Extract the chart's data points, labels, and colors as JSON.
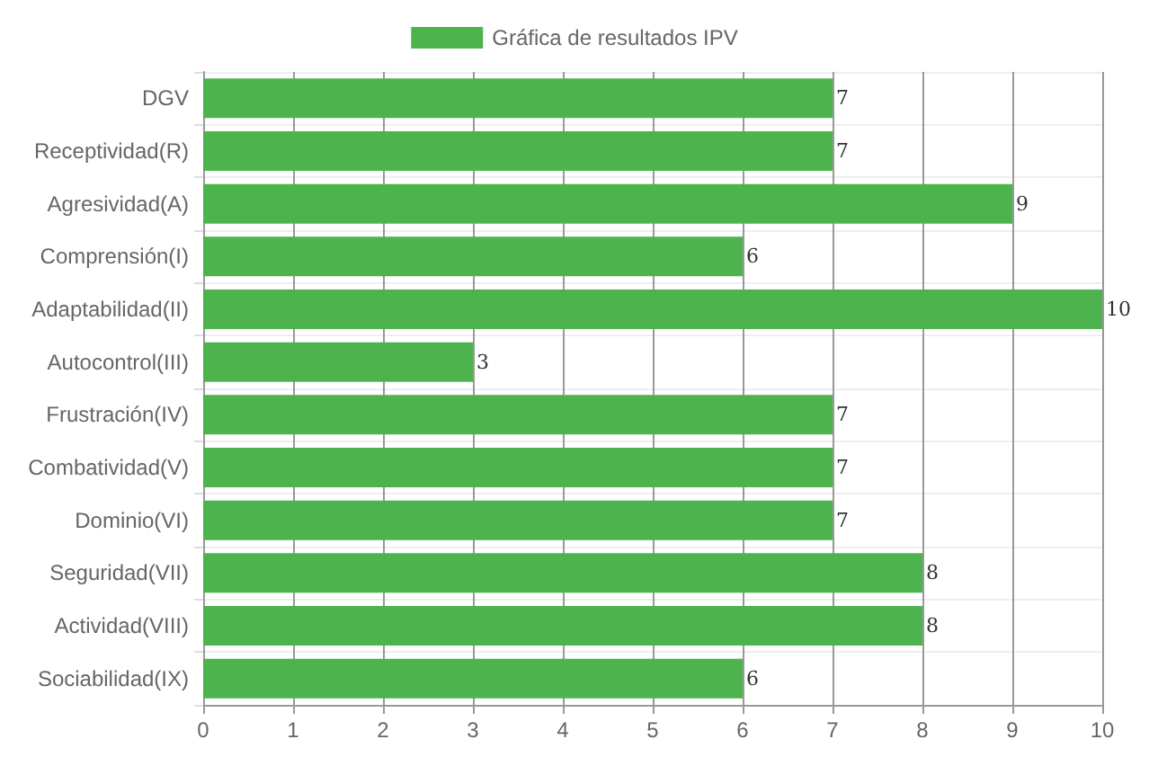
{
  "chart_data": {
    "type": "bar",
    "orientation": "horizontal",
    "categories": [
      "DGV",
      "Receptividad(R)",
      "Agresividad(A)",
      "Comprensión(I)",
      "Adaptabilidad(II)",
      "Autocontrol(III)",
      "Frustración(IV)",
      "Combatividad(V)",
      "Dominio(VI)",
      "Seguridad(VII)",
      "Actividad(VIII)",
      "Sociabilidad(IX)"
    ],
    "series": [
      {
        "name": "Gráfica de resultados IPV",
        "color": "#4db34d",
        "values": [
          7,
          7,
          9,
          6,
          10,
          3,
          7,
          7,
          7,
          8,
          8,
          6
        ]
      }
    ],
    "xlim": [
      0,
      10
    ],
    "xticks": [
      0,
      1,
      2,
      3,
      4,
      5,
      6,
      7,
      8,
      9,
      10
    ],
    "grid": true,
    "legend": "top",
    "data_labels": true
  }
}
